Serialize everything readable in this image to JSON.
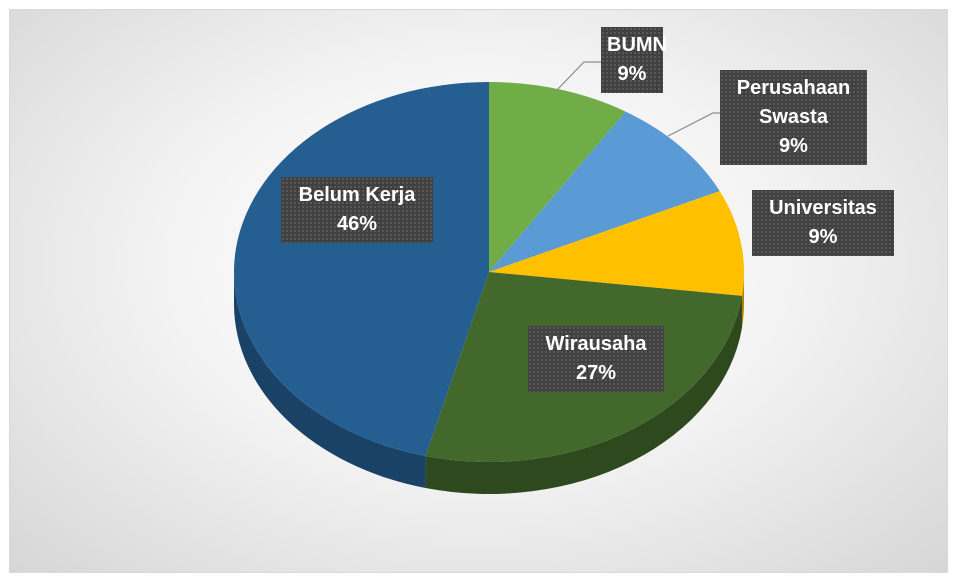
{
  "chart_data": {
    "type": "pie",
    "categories": [
      "BUMN",
      "Perusahaan Swasta",
      "Universitas",
      "Wirausaha",
      "Belum Kerja"
    ],
    "values": [
      9,
      9,
      9,
      27,
      46
    ],
    "value_labels": [
      "9%",
      "9%",
      "9%",
      "27%",
      "46%"
    ],
    "colors": [
      "#70ad47",
      "#5b9bd5",
      "#ffc000",
      "#43682b",
      "#255e91"
    ]
  }
}
